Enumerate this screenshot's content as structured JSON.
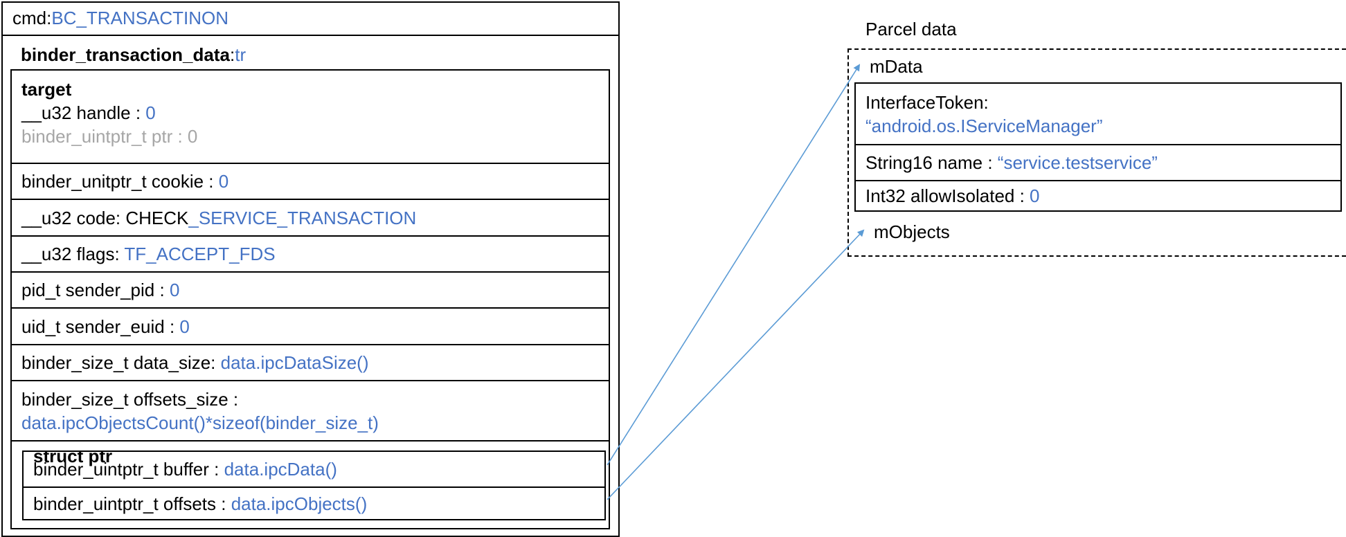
{
  "cmd": {
    "label": "cmd: ",
    "value": "BC_TRANSACTINON"
  },
  "tr": {
    "label": "binder_transaction_data",
    "sep": " : ",
    "value": "tr"
  },
  "target": {
    "heading": "target",
    "handle_label": "__u32 handle : ",
    "handle_value": "0",
    "ptr_text": "binder_uintptr_t ptr : 0"
  },
  "cookie": {
    "label": "binder_unitptr_t cookie : ",
    "value": "0"
  },
  "code": {
    "label": "__u32 code: CHECK",
    "value": "_SERVICE_TRANSACTION"
  },
  "flags": {
    "label": "__u32 flags: ",
    "value": "TF_ACCEPT_FDS"
  },
  "sender_pid": {
    "label": "pid_t sender_pid : ",
    "value": "0"
  },
  "sender_euid": {
    "label": "uid_t sender_euid : ",
    "value": "0"
  },
  "data_size": {
    "label": "binder_size_t data_size: ",
    "value": "data.ipcDataSize()"
  },
  "offsets_size": {
    "label": "binder_size_t offsets_size :",
    "value": "data.ipcObjectsCount()*sizeof(binder_size_t)"
  },
  "struct_ptr": {
    "heading": "struct ptr",
    "buffer_label": "binder_uintptr_t buffer : ",
    "buffer_value": "data.ipcData()",
    "offsets_label": "binder_uintptr_t offsets : ",
    "offsets_value": "data.ipcObjects()"
  },
  "parcel": {
    "title": "Parcel data",
    "mdata": "mData",
    "interface_label": "InterfaceToken:",
    "interface_value": "“android.os.IServiceManager”",
    "name_label": "String16 name : ",
    "name_value": "“service.testservice”",
    "allow_label": "Int32 allowIsolated : ",
    "allow_value": "0",
    "mobjects": "mObjects"
  },
  "colors": {
    "accent": "#4472C4",
    "muted": "#A6A6A6",
    "arrow": "#5B9BD5"
  }
}
